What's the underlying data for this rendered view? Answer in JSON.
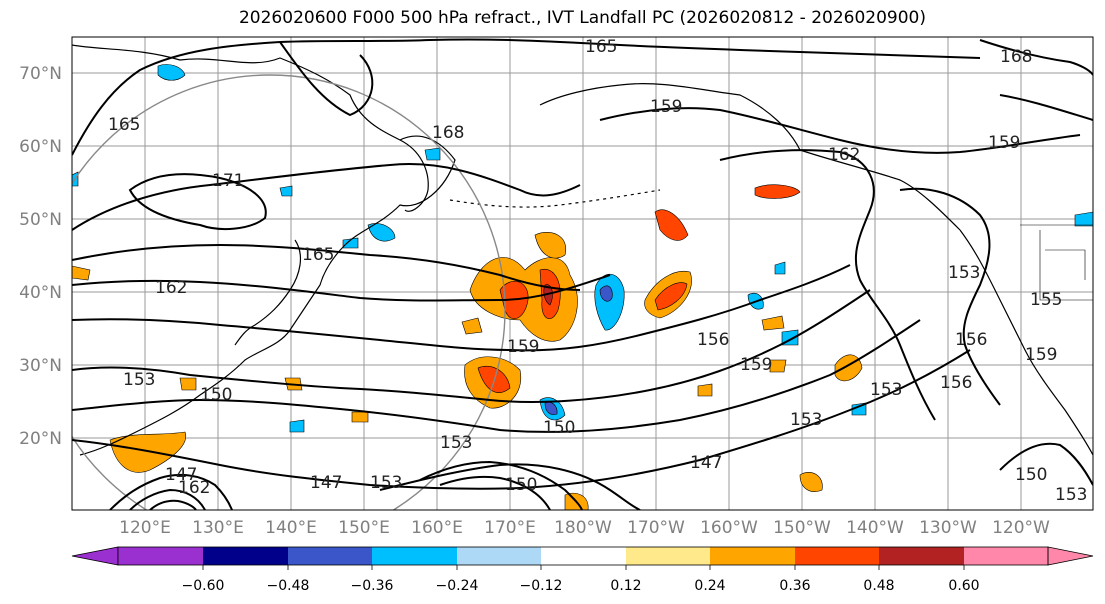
{
  "title": "2026020600 F000 500 hPa refract., IVT Landfall PC (2026020812 - 2026020900)",
  "lat_labels": [
    "70°N",
    "60°N",
    "50°N",
    "40°N",
    "30°N",
    "20°N"
  ],
  "lon_labels": [
    "120°E",
    "130°E",
    "140°E",
    "150°E",
    "160°E",
    "170°E",
    "180°W",
    "170°W",
    "160°W",
    "150°W",
    "140°W",
    "130°W",
    "120°W"
  ],
  "colorbar": {
    "ticks": [
      "−0.60",
      "−0.48",
      "−0.36",
      "−0.24",
      "−0.12",
      "0.12",
      "0.24",
      "0.36",
      "0.48",
      "0.60"
    ],
    "colors": [
      "#9b30d0",
      "#00008b",
      "#3a56c8",
      "#00bfff",
      "#add8f6",
      "#ffffff",
      "#ffe98a",
      "#ffa500",
      "#ff4500",
      "#b22222",
      "#ff88aa"
    ]
  },
  "contour_labels": [
    "165",
    "165",
    "168",
    "159",
    "159",
    "162",
    "171",
    "168",
    "165",
    "162",
    "153",
    "159",
    "156",
    "150",
    "153",
    "150",
    "159",
    "153",
    "156",
    "153",
    "156",
    "159",
    "153",
    "147",
    "147",
    "150",
    "153",
    "150",
    "147",
    "162",
    "153",
    "155"
  ]
}
